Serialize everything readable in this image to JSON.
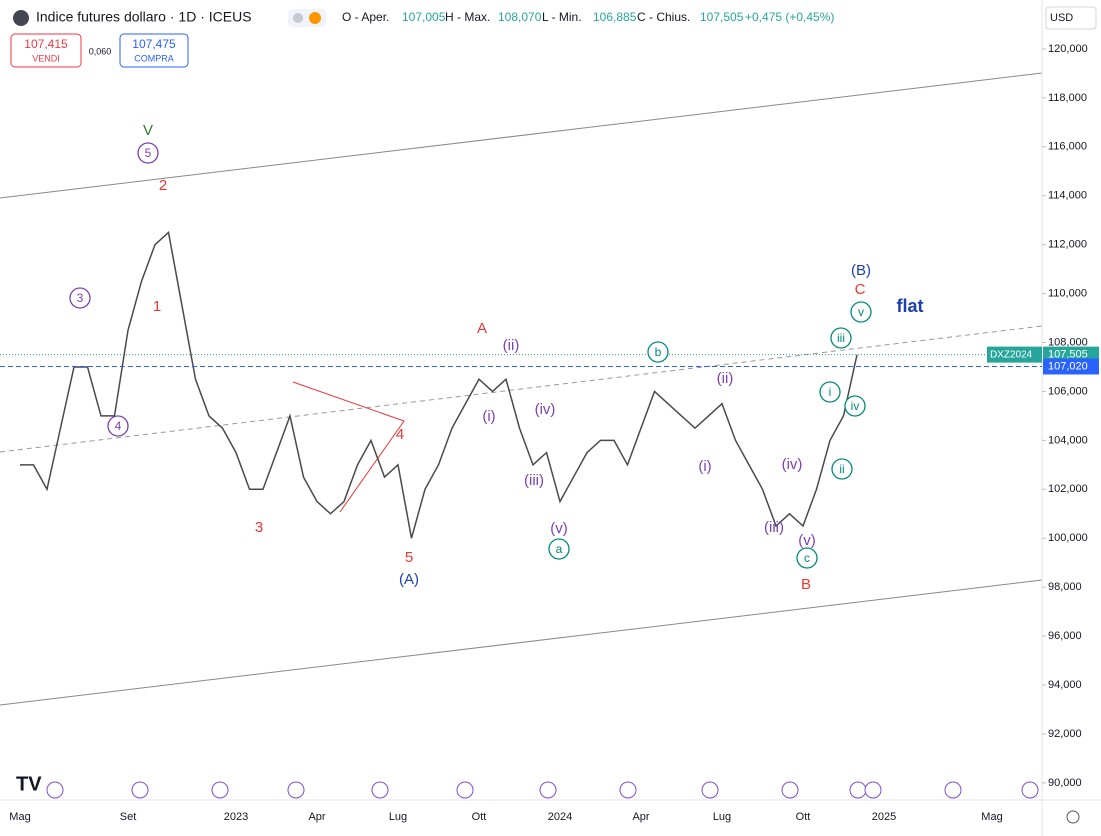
{
  "chart_data": {
    "type": "line",
    "title": "Indice futures dollaro · 1D · ICEUS",
    "ohlc": {
      "open_label": "O - Aper.",
      "open": "107,005",
      "high_label": "H - Max.",
      "high": "108,070",
      "low_label": "L - Min.",
      "low": "106,885",
      "close_label": "C - Chius.",
      "close": "107,505",
      "change": "+0,475 (+0,45%)"
    },
    "quote": {
      "sell": "107,415",
      "sell_label": "VENDI",
      "spread": "0,060",
      "buy": "107,475",
      "buy_label": "COMPRA"
    },
    "currency": "USD",
    "color": "#4a4a4a",
    "categories": [
      "Mag",
      null,
      null,
      null,
      null,
      null,
      null,
      null,
      "Set",
      null,
      null,
      null,
      null,
      null,
      null,
      null,
      "2023",
      null,
      null,
      null,
      null,
      null,
      "Apr",
      null,
      null,
      null,
      null,
      null,
      "Lug",
      null,
      null,
      null,
      null,
      null,
      "Ott",
      null,
      null,
      null,
      null,
      null,
      "2024",
      null,
      null,
      null,
      null,
      null,
      "Apr",
      null,
      null,
      null,
      null,
      null,
      "Lug",
      null,
      null,
      null,
      null,
      null,
      "Ott",
      null,
      null,
      null,
      null,
      null,
      "2025",
      null,
      null,
      null,
      null,
      null,
      null,
      null,
      "Mag"
    ],
    "values": [
      103,
      103,
      102,
      104.5,
      107,
      107,
      105,
      105,
      108.5,
      110.5,
      112,
      112.5,
      109.5,
      106.5,
      105,
      104.5,
      103.5,
      102,
      102,
      103.5,
      105,
      102.5,
      101.5,
      101,
      101.5,
      103,
      104,
      102.5,
      103,
      100,
      102,
      103,
      104.5,
      105.5,
      106.5,
      106,
      106.5,
      104.5,
      103,
      103.5,
      101.5,
      102.5,
      103.5,
      104,
      104,
      103,
      104.5,
      106,
      105.5,
      105,
      104.5,
      105,
      105.5,
      104,
      103,
      102,
      100.5,
      101,
      100.5,
      102,
      104,
      105,
      107.5,
      null,
      null,
      null,
      null,
      null,
      null,
      null,
      null,
      null,
      null
    ],
    "ylim": [
      89.3,
      122
    ],
    "yticks": [
      {
        "value": 90,
        "label": "90,000"
      },
      {
        "value": 92,
        "label": "92,000"
      },
      {
        "value": 94,
        "label": "94,000"
      },
      {
        "value": 96,
        "label": "96,000"
      },
      {
        "value": 98,
        "label": "98,000"
      },
      {
        "value": 100,
        "label": "100,000"
      },
      {
        "value": 102,
        "label": "102,000"
      },
      {
        "value": 104,
        "label": "104,000"
      },
      {
        "value": 106,
        "label": "106,000"
      },
      {
        "value": 108,
        "label": "108,000"
      },
      {
        "value": 110,
        "label": "110,000"
      },
      {
        "value": 112,
        "label": "112,000"
      },
      {
        "value": 114,
        "label": "114,000"
      },
      {
        "value": 116,
        "label": "116,000"
      },
      {
        "value": 118,
        "label": "118,000"
      },
      {
        "value": 120,
        "label": "120,000"
      }
    ],
    "price_lines": [
      {
        "value": 107.505,
        "label": "107,505",
        "tag": "DXZ2024",
        "color": "#26a69a"
      },
      {
        "value": 107.02,
        "label": "107,020",
        "color": "#2962ff"
      }
    ],
    "annotations": [
      "V",
      "5",
      "2",
      "1",
      "3",
      "4",
      "3",
      "4",
      "5",
      "(A)",
      "A",
      "(ii)",
      "(i)",
      "(iv)",
      "(iii)",
      "(v)",
      "a",
      "b",
      "(ii)",
      "(i)",
      "(iv)",
      "(iii)",
      "(v)",
      "c",
      "B",
      "(B)",
      "C",
      "v",
      "iii",
      "i",
      "iv",
      "ii",
      "flat"
    ]
  }
}
